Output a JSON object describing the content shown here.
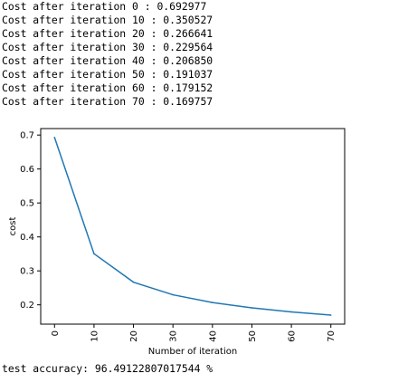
{
  "log_lines": [
    "Cost after iteration 0 : 0.692977",
    "Cost after iteration 10 : 0.350527",
    "Cost after iteration 20 : 0.266641",
    "Cost after iteration 30 : 0.229564",
    "Cost after iteration 40 : 0.206850",
    "Cost after iteration 50 : 0.191037",
    "Cost after iteration 60 : 0.179152",
    "Cost after iteration 70 : 0.169757"
  ],
  "chart_data": {
    "type": "line",
    "title": "",
    "xlabel": "Number of iteration",
    "ylabel": "cost",
    "x": [
      0,
      10,
      20,
      30,
      40,
      50,
      60,
      70
    ],
    "series": [
      {
        "values": [
          0.692977,
          0.350527,
          0.266641,
          0.229564,
          0.20685,
          0.191037,
          0.179152,
          0.169757
        ],
        "color": "#1f77b4"
      }
    ],
    "xticks": [
      0,
      10,
      20,
      30,
      40,
      50,
      60,
      70
    ],
    "xtick_labels": [
      "0",
      "10",
      "20",
      "30",
      "40",
      "50",
      "60",
      "70"
    ],
    "yticks": [
      0.2,
      0.3,
      0.4,
      0.5,
      0.6,
      0.7
    ],
    "ytick_labels": [
      "0.2",
      "0.3",
      "0.4",
      "0.5",
      "0.6",
      "0.7"
    ],
    "xlim": [
      -3.5,
      73.5
    ],
    "ylim": [
      0.1431,
      0.7191
    ],
    "xtick_rotation": "vertical",
    "grid": false
  },
  "test_accuracy_text": "test accuracy: 96.49122807017544 %"
}
